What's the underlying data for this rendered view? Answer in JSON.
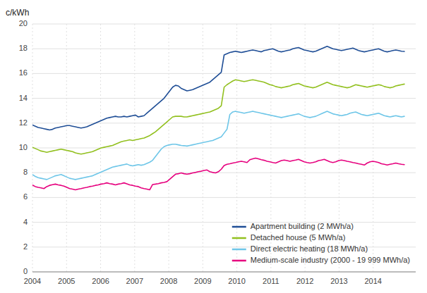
{
  "chart_data": {
    "type": "line",
    "ylabel": "c/kWh",
    "xlim": [
      2004.0,
      2015.25
    ],
    "xticks": [
      2004,
      2005,
      2006,
      2007,
      2008,
      2009,
      2010,
      2011,
      2012,
      2013,
      2014
    ],
    "ylim": [
      0,
      20
    ],
    "yticks": [
      0,
      2,
      4,
      6,
      8,
      10,
      12,
      14,
      16,
      18,
      20
    ],
    "grid": true,
    "legend": "lower right",
    "x": [
      2004.0,
      2004.084,
      2004.1679,
      2004.2519,
      2004.3359,
      2004.4199,
      2004.5038,
      2004.5878,
      2004.6718,
      2004.7558,
      2004.8397,
      2004.9237,
      2005.0077,
      2005.0917,
      2005.1756,
      2005.2596,
      2005.3436,
      2005.4276,
      2005.5115,
      2005.5955,
      2005.6795,
      2005.7635,
      2005.8474,
      2005.9314,
      2006.0154,
      2006.0994,
      2006.1833,
      2006.2673,
      2006.3513,
      2006.4353,
      2006.5192,
      2006.6032,
      2006.6872,
      2006.7712,
      2006.8551,
      2006.9391,
      2007.0231,
      2007.1071,
      2007.191,
      2007.275,
      2007.359,
      2007.4429,
      2007.5269,
      2007.6109,
      2007.6949,
      2007.7788,
      2007.8628,
      2007.9468,
      2008.0308,
      2008.1147,
      2008.1987,
      2008.2827,
      2008.3667,
      2008.4506,
      2008.5346,
      2008.6186,
      2008.7026,
      2008.7865,
      2008.8705,
      2008.9545,
      2009.0385,
      2009.1224,
      2009.2064,
      2009.2904,
      2009.3744,
      2009.4583,
      2009.5423,
      2009.6263,
      2009.7103,
      2009.7942,
      2009.8782,
      2009.9622,
      2010.0462,
      2010.1301,
      2010.2141,
      2010.2981,
      2010.3821,
      2010.466,
      2010.55,
      2010.634,
      2010.7179,
      2010.8019,
      2010.8859,
      2010.9699,
      2011.0538,
      2011.1378,
      2011.2218,
      2011.3058,
      2011.3897,
      2011.4737,
      2011.5577,
      2011.6417,
      2011.7256,
      2011.8096,
      2011.8936,
      2011.9776,
      2012.0615,
      2012.1455,
      2012.2295,
      2012.3135,
      2012.3974,
      2012.4814,
      2012.5654,
      2012.6494,
      2012.7333,
      2012.8173,
      2012.9013,
      2012.9853,
      2013.0692,
      2013.1532,
      2013.2372,
      2013.3212,
      2013.4051,
      2013.4891,
      2013.5731,
      2013.6571,
      2013.741,
      2013.825,
      2013.909,
      2013.9929,
      2014.0769,
      2014.1609,
      2014.2449,
      2014.3288,
      2014.4128,
      2014.4968,
      2014.5808,
      2014.6647,
      2014.7487,
      2014.8327,
      2014.9167
    ],
    "series": [
      {
        "name": "Apartment building (2 MWh/a)",
        "color": "#1f4e96",
        "values": [
          11.85,
          11.75,
          11.65,
          11.6,
          11.55,
          11.5,
          11.45,
          11.5,
          11.6,
          11.65,
          11.7,
          11.75,
          11.8,
          11.8,
          11.75,
          11.7,
          11.65,
          11.6,
          11.65,
          11.7,
          11.8,
          11.9,
          12.0,
          12.1,
          12.2,
          12.3,
          12.4,
          12.45,
          12.5,
          12.55,
          12.5,
          12.5,
          12.55,
          12.5,
          12.55,
          12.6,
          12.65,
          12.5,
          12.55,
          12.6,
          12.8,
          13.0,
          13.2,
          13.4,
          13.6,
          13.8,
          14.0,
          14.3,
          14.6,
          14.9,
          15.05,
          15.0,
          14.8,
          14.7,
          14.6,
          14.65,
          14.7,
          14.8,
          14.9,
          15.0,
          15.1,
          15.2,
          15.3,
          15.5,
          15.7,
          15.9,
          16.1,
          17.5,
          17.6,
          17.7,
          17.75,
          17.8,
          17.75,
          17.7,
          17.75,
          17.8,
          17.85,
          17.9,
          17.85,
          17.8,
          17.75,
          17.85,
          17.9,
          17.95,
          18.0,
          17.9,
          17.8,
          17.75,
          17.8,
          17.85,
          17.9,
          18.0,
          18.05,
          18.1,
          18.0,
          17.9,
          17.85,
          17.8,
          17.75,
          17.8,
          17.9,
          18.0,
          18.1,
          18.2,
          18.1,
          18.0,
          17.95,
          17.9,
          17.85,
          17.9,
          17.95,
          18.0,
          18.05,
          17.95,
          17.85,
          17.8,
          17.75,
          17.8,
          17.85,
          17.9,
          17.95,
          18.0,
          17.9,
          17.8,
          17.75,
          17.8,
          17.85,
          17.9,
          17.85,
          17.8,
          17.78
        ]
      },
      {
        "name": "Detached house (5 MWh/a)",
        "color": "#92c01f",
        "values": [
          10.05,
          9.95,
          9.85,
          9.75,
          9.7,
          9.65,
          9.7,
          9.75,
          9.8,
          9.85,
          9.9,
          9.85,
          9.8,
          9.75,
          9.7,
          9.6,
          9.55,
          9.5,
          9.55,
          9.6,
          9.65,
          9.7,
          9.8,
          9.9,
          10.0,
          10.05,
          10.1,
          10.15,
          10.2,
          10.3,
          10.4,
          10.5,
          10.55,
          10.6,
          10.65,
          10.6,
          10.65,
          10.7,
          10.75,
          10.8,
          10.9,
          11.0,
          11.15,
          11.3,
          11.5,
          11.7,
          11.9,
          12.1,
          12.3,
          12.5,
          12.55,
          12.55,
          12.55,
          12.5,
          12.5,
          12.55,
          12.6,
          12.65,
          12.7,
          12.75,
          12.8,
          12.85,
          12.9,
          13.0,
          13.1,
          13.2,
          13.4,
          14.9,
          15.1,
          15.25,
          15.4,
          15.5,
          15.45,
          15.4,
          15.35,
          15.4,
          15.45,
          15.5,
          15.45,
          15.4,
          15.35,
          15.3,
          15.2,
          15.1,
          15.05,
          14.95,
          14.9,
          14.85,
          14.9,
          14.95,
          15.0,
          15.1,
          15.15,
          15.2,
          15.1,
          15.0,
          14.95,
          14.9,
          14.85,
          14.9,
          15.0,
          15.1,
          15.2,
          15.3,
          15.2,
          15.1,
          15.05,
          15.0,
          14.95,
          14.9,
          14.85,
          14.9,
          15.0,
          15.1,
          15.05,
          15.0,
          14.95,
          14.9,
          14.95,
          15.0,
          15.05,
          15.1,
          15.05,
          14.95,
          14.9,
          14.85,
          14.9,
          15.0,
          15.05,
          15.1,
          15.15
        ]
      },
      {
        "name": "Direct electric heating (18 MWh/a)",
        "color": "#6ec6e8",
        "values": [
          7.85,
          7.7,
          7.6,
          7.55,
          7.5,
          7.45,
          7.55,
          7.65,
          7.75,
          7.8,
          7.85,
          7.75,
          7.65,
          7.55,
          7.5,
          7.45,
          7.5,
          7.55,
          7.6,
          7.65,
          7.7,
          7.75,
          7.85,
          7.95,
          8.05,
          8.15,
          8.25,
          8.35,
          8.45,
          8.5,
          8.55,
          8.6,
          8.65,
          8.7,
          8.6,
          8.55,
          8.6,
          8.65,
          8.6,
          8.65,
          8.75,
          8.85,
          9.0,
          9.3,
          9.6,
          9.9,
          10.1,
          10.2,
          10.25,
          10.3,
          10.3,
          10.25,
          10.2,
          10.18,
          10.15,
          10.2,
          10.25,
          10.3,
          10.35,
          10.4,
          10.45,
          10.5,
          10.55,
          10.6,
          10.7,
          10.8,
          10.9,
          11.2,
          11.5,
          12.7,
          12.9,
          12.95,
          12.9,
          12.85,
          12.8,
          12.85,
          12.9,
          12.95,
          12.9,
          12.85,
          12.8,
          12.75,
          12.7,
          12.65,
          12.6,
          12.55,
          12.5,
          12.45,
          12.5,
          12.55,
          12.6,
          12.65,
          12.7,
          12.75,
          12.65,
          12.55,
          12.5,
          12.45,
          12.5,
          12.55,
          12.65,
          12.75,
          12.85,
          12.95,
          12.85,
          12.75,
          12.7,
          12.65,
          12.6,
          12.65,
          12.7,
          12.8,
          12.85,
          12.9,
          12.8,
          12.7,
          12.65,
          12.6,
          12.65,
          12.7,
          12.75,
          12.8,
          12.7,
          12.6,
          12.55,
          12.5,
          12.55,
          12.6,
          12.55,
          12.5,
          12.55
        ]
      },
      {
        "name": "Medium-scale industry (2000 - 19 999 MWh/a)",
        "color": "#e6007e",
        "values": [
          7.0,
          6.88,
          6.82,
          6.78,
          6.72,
          6.88,
          6.98,
          7.03,
          7.08,
          7.02,
          6.98,
          6.92,
          6.82,
          6.72,
          6.68,
          6.62,
          6.68,
          6.72,
          6.78,
          6.82,
          6.88,
          6.92,
          6.98,
          7.02,
          7.08,
          7.12,
          7.18,
          7.12,
          7.08,
          7.02,
          7.08,
          7.12,
          7.18,
          7.1,
          7.02,
          6.98,
          6.92,
          6.88,
          6.78,
          6.72,
          6.68,
          6.62,
          7.05,
          7.08,
          7.12,
          7.18,
          7.22,
          7.28,
          7.48,
          7.68,
          7.88,
          7.92,
          7.98,
          7.92,
          7.88,
          7.92,
          7.98,
          8.02,
          8.08,
          8.12,
          8.18,
          8.22,
          8.08,
          8.02,
          7.98,
          8.08,
          8.28,
          8.58,
          8.68,
          8.72,
          8.78,
          8.82,
          8.88,
          8.92,
          8.88,
          8.82,
          9.05,
          9.12,
          9.18,
          9.12,
          9.05,
          9.0,
          8.92,
          8.88,
          8.82,
          8.78,
          8.88,
          8.98,
          9.02,
          8.98,
          8.92,
          8.98,
          9.02,
          9.08,
          8.98,
          8.88,
          8.82,
          8.78,
          8.82,
          8.88,
          8.98,
          9.02,
          9.08,
          8.98,
          8.88,
          8.82,
          8.88,
          8.98,
          9.02,
          8.98,
          8.92,
          8.88,
          8.82,
          8.78,
          8.72,
          8.68,
          8.62,
          8.78,
          8.88,
          8.92,
          8.88,
          8.82,
          8.72,
          8.68,
          8.62,
          8.68,
          8.72,
          8.78,
          8.72,
          8.68,
          8.65
        ]
      }
    ]
  }
}
